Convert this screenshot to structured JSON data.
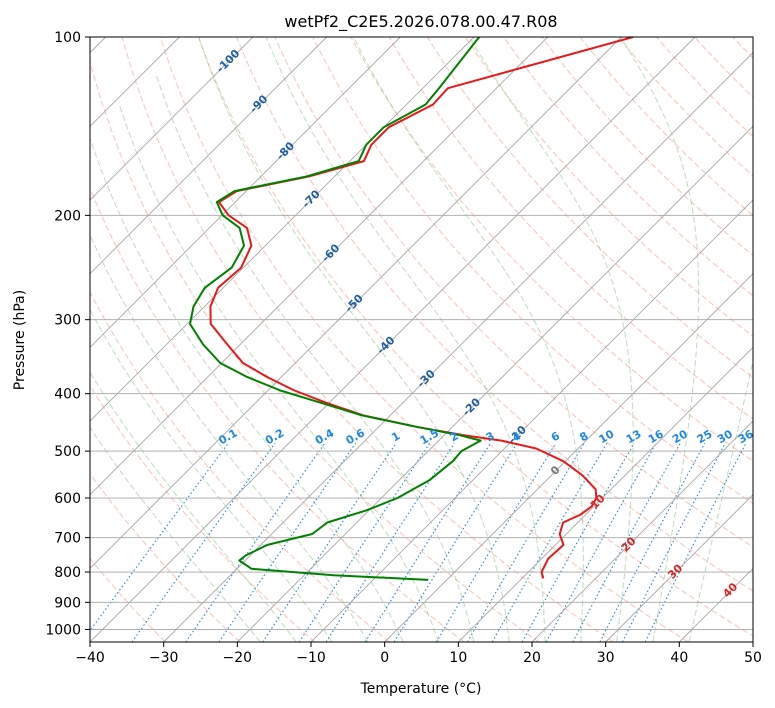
{
  "chart_data": {
    "type": "line",
    "title": "wetPf2_C2E5.2026.078.00.47.R08",
    "xlabel": "Temperature (°C)",
    "ylabel": "Pressure (hPa)",
    "xlim": [
      -40,
      50
    ],
    "ylim": [
      1050,
      100
    ],
    "x_ticks": [
      -40,
      -30,
      -20,
      -10,
      0,
      10,
      20,
      30,
      40,
      50
    ],
    "x_tick_labels": [
      "−40",
      "−30",
      "−20",
      "−10",
      "0",
      "10",
      "20",
      "30",
      "40",
      "50"
    ],
    "y_ticks": [
      100,
      200,
      300,
      400,
      500,
      600,
      700,
      800,
      900,
      1000
    ],
    "y_tick_labels": [
      "100",
      "200",
      "300",
      "400",
      "500",
      "600",
      "700",
      "800",
      "900",
      "1000"
    ],
    "colors": {
      "temperature": "#e41a1c",
      "dewpoint": "#008000",
      "isotherm": "#a6a6a6",
      "dry_adiabat": "#fc9272",
      "moist_adiabat": "#74c476",
      "mixing_ratio": "#1e88e5",
      "axis_label_blue": "#1f5fa0",
      "frame": "#000000"
    },
    "series": [
      {
        "name": "Temperature",
        "pressure": [
          100,
          122,
          130,
          142,
          152,
          162,
          172,
          182,
          190,
          200,
          210,
          225,
          245,
          265,
          285,
          305,
          330,
          355,
          375,
          395,
          415,
          435,
          455,
          470,
          480,
          495,
          520,
          550,
          580,
          600,
          620,
          640,
          660,
          690,
          720,
          760,
          800,
          820
        ],
        "values": [
          -48.4,
          -66.6,
          -66.4,
          -69.3,
          -69.3,
          -68.1,
          -73.5,
          -81.3,
          -82.2,
          -79.1,
          -74.9,
          -71.9,
          -70.3,
          -70.7,
          -69.2,
          -66.8,
          -61.8,
          -57.1,
          -51.9,
          -46.4,
          -40.2,
          -33.7,
          -24.9,
          -17.3,
          -11.5,
          -5.7,
          -0.3,
          4.3,
          7.9,
          9.2,
          9.7,
          9.3,
          8.0,
          9.1,
          11.1,
          10.9,
          11.8,
          12.9
        ]
      },
      {
        "name": "Dewpoint",
        "pressure": [
          100,
          122,
          130,
          142,
          152,
          162,
          172,
          182,
          190,
          200,
          210,
          225,
          245,
          265,
          285,
          305,
          330,
          355,
          375,
          395,
          415,
          435,
          455,
          470,
          480,
          500,
          520,
          560,
          600,
          630,
          660,
          690,
          720,
          750,
          765,
          790,
          810,
          825
        ],
        "values": [
          -69.3,
          -67.8,
          -67.4,
          -70.0,
          -70.0,
          -68.8,
          -73.8,
          -81.6,
          -82.5,
          -79.9,
          -75.9,
          -72.9,
          -71.6,
          -72.5,
          -71.5,
          -69.6,
          -65.1,
          -60.2,
          -54.6,
          -48.3,
          -40.9,
          -33.9,
          -24.9,
          -17.9,
          -14.3,
          -15.5,
          -15.3,
          -15.9,
          -17.8,
          -20.4,
          -24.0,
          -24.5,
          -29.1,
          -30.6,
          -30.8,
          -28.0,
          -16.0,
          -2.5
        ]
      }
    ],
    "isotherm_labels": [
      "-100",
      "-90",
      "-80",
      "-70",
      "-60",
      "-50",
      "-40",
      "-30",
      "-20",
      "-10"
    ],
    "isotherm_label_values": [
      -100,
      -90,
      -80,
      -70,
      -60,
      -50,
      -40,
      -30,
      -20,
      -10
    ],
    "isotherm_label_pressures": [
      110,
      130,
      156,
      188,
      232,
      282,
      332,
      378,
      422,
      470
    ],
    "freezing_label": "0",
    "freezing_label_pressure": 540,
    "warm_isotherm_labels": [
      "10",
      "20",
      "30",
      "40"
    ],
    "warm_isotherm_values": [
      10,
      20,
      30,
      40
    ],
    "warm_isotherm_label_pressures": [
      610,
      720,
      800,
      860
    ],
    "mixing_ratio_labels": [
      "0.1",
      "0.2",
      "0.4",
      "0.6",
      "1",
      "1.5",
      "2",
      "3",
      "4",
      "6",
      "8",
      "10",
      "13",
      "16",
      "20",
      "25",
      "30",
      "36"
    ],
    "mixing_ratio_values": [
      0.1,
      0.2,
      0.4,
      0.6,
      1,
      1.5,
      2,
      3,
      4,
      6,
      8,
      10,
      13,
      16,
      20,
      25,
      30,
      36
    ],
    "mixing_ratio_label_pressure": 485,
    "legend": "none",
    "grid": true
  }
}
